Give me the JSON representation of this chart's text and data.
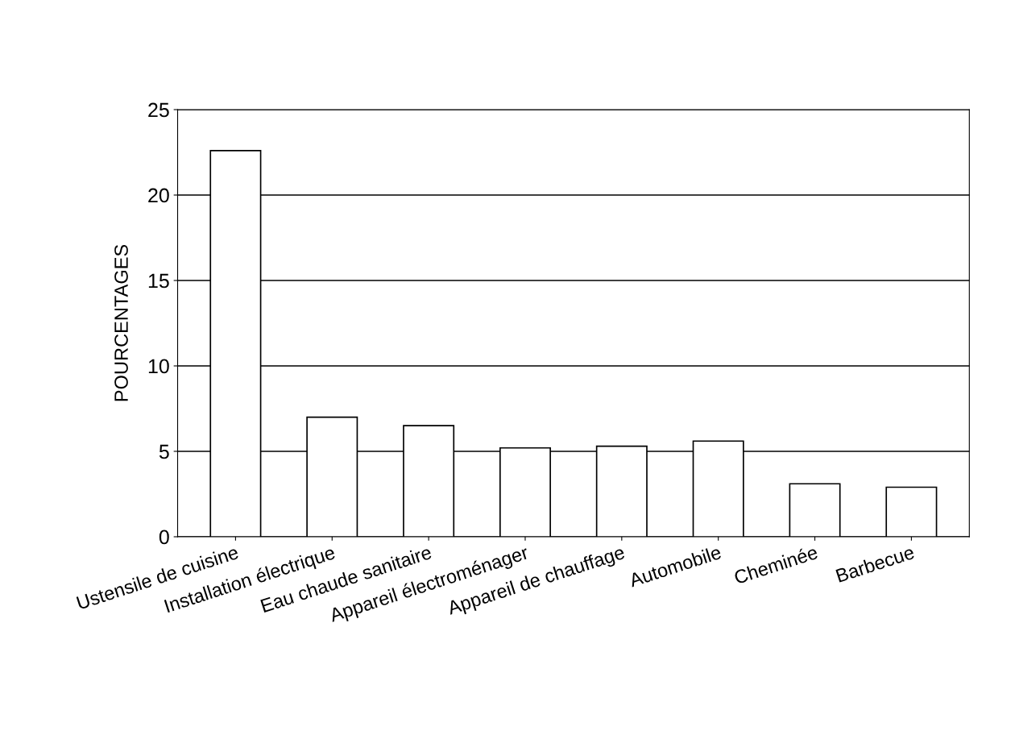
{
  "chart_data": {
    "type": "bar",
    "ylabel": "POURCENTAGES",
    "categories": [
      "Ustensile de cuisine",
      "Installation électrique",
      "Eau chaude sanitaire",
      "Appareil électroménager",
      "Appareil de chauffage",
      "Automobile",
      "Cheminée",
      "Barbecue"
    ],
    "values": [
      22.6,
      7.0,
      6.5,
      5.2,
      5.3,
      5.6,
      3.1,
      2.9
    ],
    "color": "#ffffff",
    "ylim": [
      0,
      25
    ],
    "yticks": [
      0,
      5,
      10,
      15,
      20,
      25
    ],
    "grid": "y"
  }
}
